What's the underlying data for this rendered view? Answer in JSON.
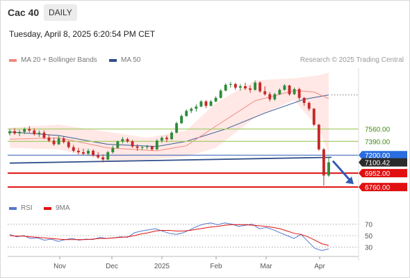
{
  "header": {
    "title": "Cac 40",
    "interval": "DAILY"
  },
  "timestamp": "Tuesday, April 8, 2025 6:20:54 PM CET",
  "legend": {
    "ma20": "MA 20 + Bollinger Bands",
    "ma50": "MA 50",
    "research": "Research © 2025 Trading Central",
    "rsi": "RSI",
    "rsi_ma": "9MA"
  },
  "colors": {
    "up": "#2e8b3a",
    "down": "#c62828",
    "ma20": "#f08a80",
    "band": "#ffe0dc",
    "ma50": "#3a5a96",
    "level_green": "#a8cc6a",
    "level_red": "#e01010",
    "level_blue": "#2f5bb5",
    "label_blue": "#2a6de0",
    "rsi": "#5577cc",
    "rsi_ma": "#e01010"
  },
  "chart_data": [
    {
      "type": "candlestick",
      "title": "Cac 40",
      "interval": "daily",
      "x_ticks": [
        "Nov",
        "Dec",
        "2025",
        "Feb",
        "Mar",
        "Apr"
      ],
      "ylim": [
        6560,
        8400
      ],
      "ohlc_sample": [
        {
          "x": "Oct 14",
          "o": 7500,
          "h": 7560,
          "l": 7470,
          "c": 7530
        },
        {
          "x": "Oct 16",
          "o": 7530,
          "h": 7570,
          "l": 7480,
          "c": 7500
        },
        {
          "x": "Oct 18",
          "o": 7500,
          "h": 7550,
          "l": 7460,
          "c": 7520
        },
        {
          "x": "Oct 21",
          "o": 7520,
          "h": 7580,
          "l": 7490,
          "c": 7560
        },
        {
          "x": "Oct 23",
          "o": 7560,
          "h": 7600,
          "l": 7510,
          "c": 7540
        },
        {
          "x": "Oct 25",
          "o": 7540,
          "h": 7570,
          "l": 7470,
          "c": 7490
        },
        {
          "x": "Oct 28",
          "o": 7490,
          "h": 7540,
          "l": 7450,
          "c": 7510
        },
        {
          "x": "Oct 30",
          "o": 7510,
          "h": 7540,
          "l": 7420,
          "c": 7440
        },
        {
          "x": "Nov 1",
          "o": 7440,
          "h": 7480,
          "l": 7380,
          "c": 7400
        },
        {
          "x": "Nov 4",
          "o": 7400,
          "h": 7440,
          "l": 7330,
          "c": 7350
        },
        {
          "x": "Nov 6",
          "o": 7350,
          "h": 7470,
          "l": 7340,
          "c": 7430
        },
        {
          "x": "Nov 8",
          "o": 7430,
          "h": 7460,
          "l": 7360,
          "c": 7380
        },
        {
          "x": "Nov 12",
          "o": 7380,
          "h": 7400,
          "l": 7290,
          "c": 7310
        },
        {
          "x": "Nov 14",
          "o": 7310,
          "h": 7340,
          "l": 7240,
          "c": 7260
        },
        {
          "x": "Nov 18",
          "o": 7260,
          "h": 7300,
          "l": 7210,
          "c": 7240
        },
        {
          "x": "Nov 20",
          "o": 7240,
          "h": 7290,
          "l": 7200,
          "c": 7220
        },
        {
          "x": "Nov 22",
          "o": 7220,
          "h": 7290,
          "l": 7200,
          "c": 7260
        },
        {
          "x": "Nov 26",
          "o": 7260,
          "h": 7280,
          "l": 7180,
          "c": 7200
        },
        {
          "x": "Nov 28",
          "o": 7200,
          "h": 7240,
          "l": 7150,
          "c": 7170
        },
        {
          "x": "Dec 2",
          "o": 7170,
          "h": 7210,
          "l": 7100,
          "c": 7140
        },
        {
          "x": "Dec 4",
          "o": 7140,
          "h": 7260,
          "l": 7130,
          "c": 7240
        },
        {
          "x": "Dec 6",
          "o": 7240,
          "h": 7330,
          "l": 7220,
          "c": 7300
        },
        {
          "x": "Dec 10",
          "o": 7300,
          "h": 7400,
          "l": 7290,
          "c": 7390
        },
        {
          "x": "Dec 12",
          "o": 7390,
          "h": 7450,
          "l": 7360,
          "c": 7420
        },
        {
          "x": "Dec 16",
          "o": 7420,
          "h": 7440,
          "l": 7370,
          "c": 7390
        },
        {
          "x": "Dec 18",
          "o": 7390,
          "h": 7410,
          "l": 7300,
          "c": 7320
        },
        {
          "x": "Dec 20",
          "o": 7320,
          "h": 7350,
          "l": 7260,
          "c": 7300
        },
        {
          "x": "Dec 24",
          "o": 7300,
          "h": 7330,
          "l": 7270,
          "c": 7310
        },
        {
          "x": "Dec 30",
          "o": 7310,
          "h": 7340,
          "l": 7280,
          "c": 7320
        },
        {
          "x": "Jan 2",
          "o": 7320,
          "h": 7330,
          "l": 7260,
          "c": 7280
        },
        {
          "x": "Jan 6",
          "o": 7280,
          "h": 7420,
          "l": 7270,
          "c": 7400
        },
        {
          "x": "Jan 8",
          "o": 7400,
          "h": 7460,
          "l": 7370,
          "c": 7440
        },
        {
          "x": "Jan 10",
          "o": 7440,
          "h": 7470,
          "l": 7380,
          "c": 7420
        },
        {
          "x": "Jan 14",
          "o": 7420,
          "h": 7530,
          "l": 7410,
          "c": 7510
        },
        {
          "x": "Jan 16",
          "o": 7510,
          "h": 7660,
          "l": 7500,
          "c": 7640
        },
        {
          "x": "Jan 20",
          "o": 7640,
          "h": 7760,
          "l": 7630,
          "c": 7740
        },
        {
          "x": "Jan 22",
          "o": 7740,
          "h": 7830,
          "l": 7730,
          "c": 7810
        },
        {
          "x": "Jan 24",
          "o": 7810,
          "h": 7860,
          "l": 7780,
          "c": 7840
        },
        {
          "x": "Jan 28",
          "o": 7840,
          "h": 7900,
          "l": 7800,
          "c": 7870
        },
        {
          "x": "Jan 30",
          "o": 7870,
          "h": 7960,
          "l": 7860,
          "c": 7940
        },
        {
          "x": "Feb 3",
          "o": 7940,
          "h": 7960,
          "l": 7850,
          "c": 7880
        },
        {
          "x": "Feb 5",
          "o": 7880,
          "h": 7960,
          "l": 7870,
          "c": 7940
        },
        {
          "x": "Feb 7",
          "o": 7940,
          "h": 8010,
          "l": 7930,
          "c": 7990
        },
        {
          "x": "Feb 11",
          "o": 7990,
          "h": 8110,
          "l": 7980,
          "c": 8090
        },
        {
          "x": "Feb 13",
          "o": 8090,
          "h": 8190,
          "l": 8080,
          "c": 8170
        },
        {
          "x": "Feb 17",
          "o": 8170,
          "h": 8210,
          "l": 8130,
          "c": 8180
        },
        {
          "x": "Feb 19",
          "o": 8180,
          "h": 8200,
          "l": 8100,
          "c": 8130
        },
        {
          "x": "Feb 21",
          "o": 8130,
          "h": 8180,
          "l": 8090,
          "c": 8150
        },
        {
          "x": "Feb 25",
          "o": 8150,
          "h": 8200,
          "l": 8100,
          "c": 8120
        },
        {
          "x": "Feb 27",
          "o": 8120,
          "h": 8160,
          "l": 8060,
          "c": 8100
        },
        {
          "x": "Mar 3",
          "o": 8100,
          "h": 8230,
          "l": 8090,
          "c": 8200
        },
        {
          "x": "Mar 5",
          "o": 8200,
          "h": 8220,
          "l": 8060,
          "c": 8080
        },
        {
          "x": "Mar 7",
          "o": 8080,
          "h": 8150,
          "l": 8020,
          "c": 8040
        },
        {
          "x": "Mar 11",
          "o": 8040,
          "h": 8070,
          "l": 7940,
          "c": 7970
        },
        {
          "x": "Mar 13",
          "o": 7970,
          "h": 8060,
          "l": 7950,
          "c": 8040
        },
        {
          "x": "Mar 17",
          "o": 8040,
          "h": 8120,
          "l": 8030,
          "c": 8100
        },
        {
          "x": "Mar 19",
          "o": 8100,
          "h": 8180,
          "l": 8090,
          "c": 8160
        },
        {
          "x": "Mar 21",
          "o": 8160,
          "h": 8170,
          "l": 8020,
          "c": 8040
        },
        {
          "x": "Mar 25",
          "o": 8040,
          "h": 8130,
          "l": 8030,
          "c": 8110
        },
        {
          "x": "Mar 27",
          "o": 8110,
          "h": 8130,
          "l": 7960,
          "c": 7990
        },
        {
          "x": "Mar 31",
          "o": 7990,
          "h": 8000,
          "l": 7880,
          "c": 7920
        },
        {
          "x": "Apr 2",
          "o": 7920,
          "h": 7940,
          "l": 7810,
          "c": 7840
        },
        {
          "x": "Apr 3",
          "o": 7840,
          "h": 7850,
          "l": 7600,
          "c": 7620
        },
        {
          "x": "Apr 4",
          "o": 7620,
          "h": 7630,
          "l": 7260,
          "c": 7280
        },
        {
          "x": "Apr 7",
          "o": 7280,
          "h": 7300,
          "l": 6780,
          "c": 6920
        },
        {
          "x": "Apr 8",
          "o": 6920,
          "h": 7180,
          "l": 6900,
          "c": 7100
        }
      ],
      "ma20": [
        [
          0,
          7420
        ],
        [
          10,
          7440
        ],
        [
          20,
          7300
        ],
        [
          30,
          7260
        ],
        [
          36,
          7330
        ],
        [
          42,
          7600
        ],
        [
          50,
          7950
        ],
        [
          58,
          8090
        ],
        [
          62,
          8070
        ],
        [
          65,
          7980
        ]
      ],
      "bollinger_upper": [
        [
          0,
          7580
        ],
        [
          10,
          7620
        ],
        [
          20,
          7520
        ],
        [
          28,
          7440
        ],
        [
          36,
          7540
        ],
        [
          42,
          7920
        ],
        [
          50,
          8230
        ],
        [
          58,
          8260
        ],
        [
          63,
          8300
        ],
        [
          65,
          8340
        ]
      ],
      "bollinger_lower": [
        [
          0,
          7300
        ],
        [
          10,
          7280
        ],
        [
          20,
          7120
        ],
        [
          28,
          7140
        ],
        [
          36,
          7180
        ],
        [
          42,
          7300
        ],
        [
          50,
          7720
        ],
        [
          58,
          7960
        ],
        [
          63,
          7560
        ],
        [
          65,
          7220
        ]
      ],
      "ma50": [
        [
          0,
          7520
        ],
        [
          10,
          7470
        ],
        [
          20,
          7350
        ],
        [
          30,
          7320
        ],
        [
          36,
          7390
        ],
        [
          44,
          7560
        ],
        [
          52,
          7780
        ],
        [
          60,
          7970
        ],
        [
          65,
          8030
        ]
      ],
      "trendline": [
        [
          0,
          7090
        ],
        [
          65,
          7170
        ]
      ],
      "last_price": 7100.42,
      "levels": [
        {
          "value": 7560,
          "label": "7560.00",
          "color": "green",
          "type": "resistance"
        },
        {
          "value": 7390,
          "label": "7390.00",
          "color": "green",
          "type": "resistance"
        },
        {
          "value": 7200,
          "label": "7200.00",
          "color": "blue",
          "type": "pivot"
        },
        {
          "value": 7100.42,
          "label": "7100.42",
          "color": "black",
          "type": "last"
        },
        {
          "value": 6952,
          "label": "6952.00",
          "color": "red",
          "type": "support"
        },
        {
          "value": 6760,
          "label": "6760.00",
          "color": "red",
          "type": "support"
        }
      ]
    },
    {
      "type": "line",
      "title": "RSI",
      "series": [
        {
          "name": "RSI",
          "values": [
            52,
            48,
            50,
            45,
            46,
            42,
            44,
            40,
            43,
            45,
            42,
            44,
            43,
            47,
            45,
            46,
            48,
            47,
            55,
            58,
            60,
            62,
            58,
            54,
            52,
            55,
            60,
            66,
            70,
            72,
            69,
            72,
            70,
            66,
            68,
            70,
            62,
            64,
            60,
            55,
            50,
            45,
            52,
            40,
            28,
            24,
            27
          ]
        },
        {
          "name": "9MA",
          "values": [
            50,
            49,
            49,
            48,
            47,
            46,
            45,
            44,
            43,
            43,
            43,
            43,
            44,
            45,
            45,
            46,
            47,
            48,
            50,
            53,
            55,
            58,
            59,
            59,
            58,
            58,
            59,
            61,
            63,
            65,
            66,
            68,
            69,
            69,
            69,
            68,
            67,
            66,
            64,
            62,
            58,
            54,
            52,
            48,
            42,
            36,
            33
          ]
        }
      ],
      "y_ticks": [
        30,
        50,
        70
      ],
      "ylim": [
        15,
        85
      ]
    }
  ]
}
